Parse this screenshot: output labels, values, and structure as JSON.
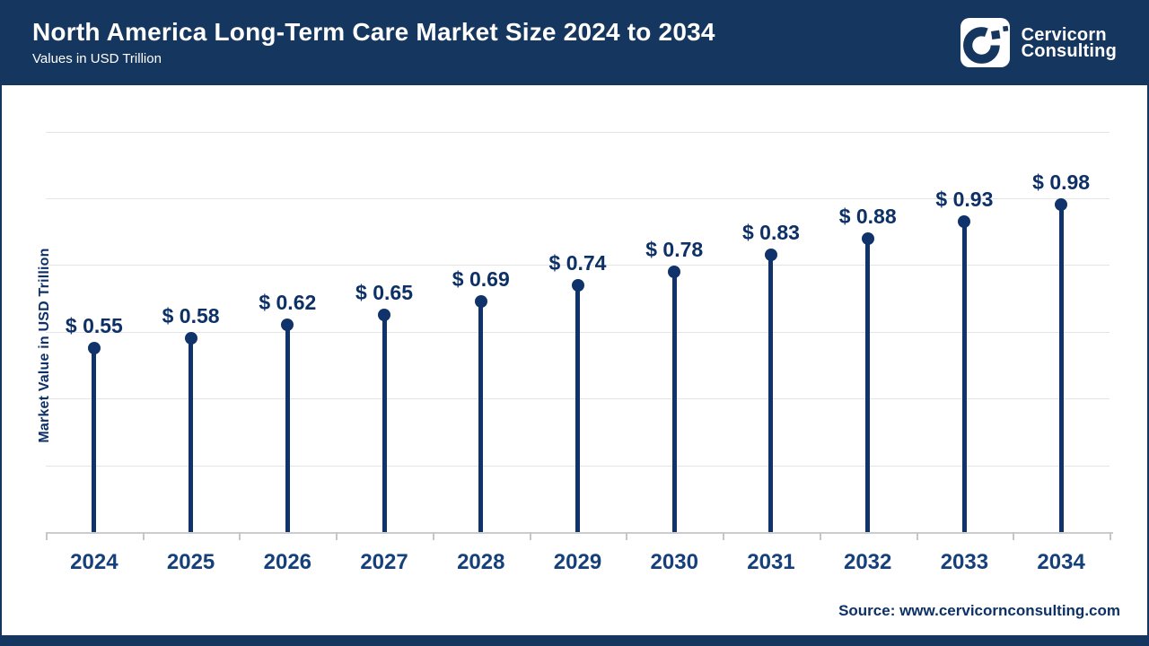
{
  "header": {
    "title": "North America Long-Term Care Market Size 2024 to 2034",
    "subtitle": "Values in USD Trillion",
    "logo": {
      "line1": "Cervicorn",
      "line2": "Consulting"
    }
  },
  "chart_data": {
    "type": "bar",
    "variant": "lollipop",
    "marker": "circle",
    "title": "North America Long-Term Care Market Size 2024 to 2034",
    "subtitle": "Values in USD Trillion",
    "xlabel": "",
    "ylabel": "Market Value in USD Trillion",
    "categories": [
      "2024",
      "2025",
      "2026",
      "2027",
      "2028",
      "2029",
      "2030",
      "2031",
      "2032",
      "2033",
      "2034"
    ],
    "values": [
      0.55,
      0.58,
      0.62,
      0.65,
      0.69,
      0.74,
      0.78,
      0.83,
      0.88,
      0.93,
      0.98
    ],
    "value_labels": [
      "$ 0.55",
      "$ 0.58",
      "$ 0.62",
      "$ 0.65",
      "$ 0.69",
      "$ 0.74",
      "$ 0.78",
      "$ 0.83",
      "$ 0.88",
      "$ 0.93",
      "$ 0.98"
    ],
    "ylim": [
      0,
      1.32
    ],
    "grid_interval": 0.2,
    "grid_visible": true,
    "y_tick_labels_visible": false,
    "legend_position": "none"
  },
  "footer": {
    "source": "Source: www.cervicornconsulting.com"
  },
  "colors": {
    "brand_navy": "#15365e",
    "mark_navy": "#10336b",
    "label_navy": "#0d3166",
    "gridline": "#e4e4e6",
    "axis_gray": "#cccccc",
    "background": "#ffffff"
  }
}
